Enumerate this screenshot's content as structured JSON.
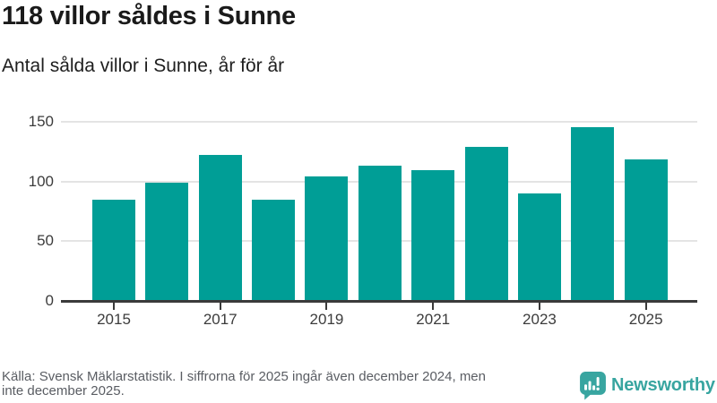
{
  "header": {
    "title": "118 villor såldes i Sunne",
    "subtitle": "Antal sålda villor i Sunne, år för år"
  },
  "chart_data": {
    "type": "bar",
    "title": "118 villor såldes i Sunne",
    "subtitle": "Antal sålda villor i Sunne, år för år",
    "categories": [
      "2015",
      "2016",
      "2017",
      "2018",
      "2019",
      "2020",
      "2021",
      "2022",
      "2023",
      "2024",
      "2025"
    ],
    "values": [
      85,
      99,
      122,
      85,
      104,
      113,
      109,
      129,
      90,
      145,
      118
    ],
    "xlabel": "",
    "ylabel": "",
    "ylim": [
      0,
      162
    ],
    "y_ticks": [
      0,
      50,
      100,
      150
    ],
    "x_tick_labels": [
      "2015",
      "2017",
      "2019",
      "2021",
      "2023",
      "2025"
    ],
    "grid": "horizontal",
    "legend": "none",
    "bar_color": "#009E96"
  },
  "footer": {
    "source_lines": [
      "Källa: Svensk Mäklarstatistik. I siffrorna för 2025 ingår även december 2024, men",
      "inte december 2025."
    ],
    "logo_text": "Newsworthy"
  },
  "colors": {
    "bar": "#009E96",
    "logo": "#38A5A0",
    "title_text": "#1A1A1A",
    "axis_text": "#3C3C3C",
    "axis_line": "#3A3A3A",
    "gridline": "#E4E4E4",
    "source_text": "#5A5D63",
    "background": "#FFFFFF"
  }
}
